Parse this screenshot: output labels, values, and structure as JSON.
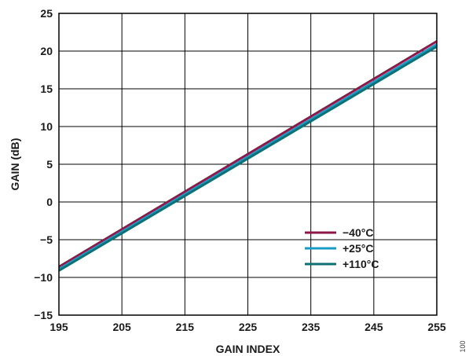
{
  "chart_data": {
    "type": "line",
    "title": "",
    "xlabel": "GAIN INDEX",
    "ylabel": "GAIN (dB)",
    "xlim": [
      195,
      255
    ],
    "ylim": [
      -15,
      25
    ],
    "x_ticks": [
      195,
      205,
      215,
      225,
      235,
      245,
      255
    ],
    "y_ticks": [
      -15,
      -10,
      -5,
      0,
      5,
      10,
      15,
      20,
      25
    ],
    "x_tick_labels": [
      "195",
      "205",
      "215",
      "225",
      "235",
      "245",
      "255"
    ],
    "y_tick_labels": [
      "−15",
      "−10",
      "−5",
      "0",
      "5",
      "10",
      "15",
      "20",
      "25"
    ],
    "grid": true,
    "legend_position": "lower-right",
    "series": [
      {
        "name": "−40°C",
        "color": "#8b1a4a",
        "x": [
          195,
          255
        ],
        "y": [
          -8.6,
          21.3
        ]
      },
      {
        "name": "+25°C",
        "color": "#1a9bc4",
        "x": [
          195,
          255
        ],
        "y": [
          -8.9,
          20.9
        ]
      },
      {
        "name": "+110°C",
        "color": "#0f6f72",
        "x": [
          195,
          255
        ],
        "y": [
          -9.1,
          20.6
        ]
      }
    ]
  },
  "figure_id": "100"
}
